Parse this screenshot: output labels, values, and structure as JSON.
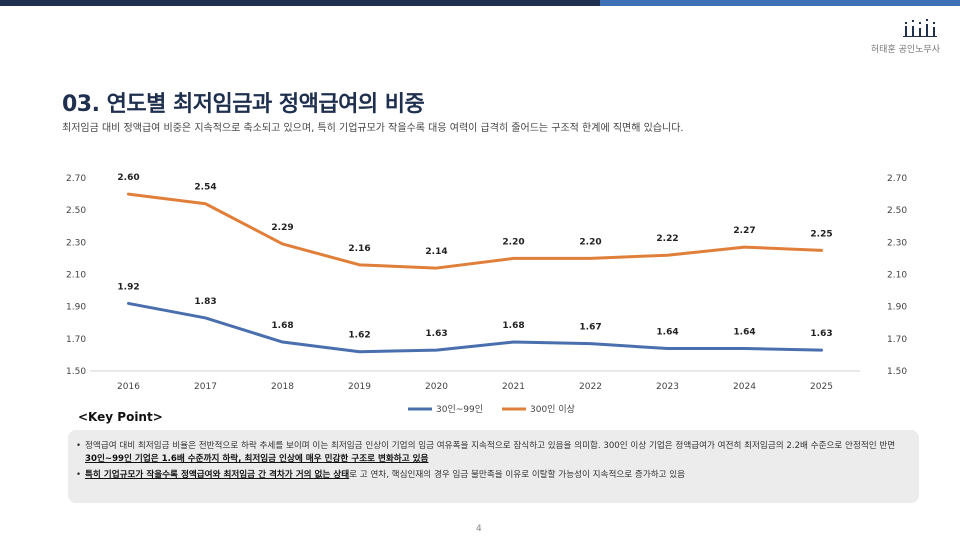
{
  "header": {
    "firm_name": "허태훈 공인노무사",
    "title": "03. 연도별 최저임금과 정액급여의 비중",
    "subtitle": "최저임금 대비 정액급여 비중은 지속적으로 축소되고 있으며, 특히 기업규모가 작을수록 대응 여력이 급격히 줄어드는 구조적 한계에 직면해 있습니다."
  },
  "colors": {
    "bar_dark": "#1f2f4e",
    "bar_light": "#3f6fb7",
    "series_30_99": "#4a6fae",
    "series_300_plus": "#e07f3a"
  },
  "chart_data": {
    "type": "line",
    "title": "",
    "xlabel": "",
    "ylabel": "",
    "x": [
      "2016",
      "2017",
      "2018",
      "2019",
      "2020",
      "2021",
      "2022",
      "2023",
      "2024",
      "2025"
    ],
    "y_ticks": [
      "2.70",
      "2.50",
      "2.30",
      "2.10",
      "1.90",
      "1.70",
      "1.50"
    ],
    "ylim": [
      1.5,
      2.7
    ],
    "grid": false,
    "legend_position": "bottom",
    "series": [
      {
        "name": "30인~99인",
        "values": [
          1.92,
          1.83,
          1.68,
          1.62,
          1.63,
          1.68,
          1.67,
          1.64,
          1.64,
          1.63
        ],
        "labels": [
          "1.92",
          "1.83",
          "1.68",
          "1.62",
          "1.63",
          "1.68",
          "1.67",
          "1.64",
          "1.64",
          "1.63"
        ]
      },
      {
        "name": "300인 이상",
        "values": [
          2.6,
          2.54,
          2.29,
          2.16,
          2.14,
          2.2,
          2.2,
          2.22,
          2.27,
          2.25
        ],
        "labels": [
          "2.60",
          "2.54",
          "2.29",
          "2.16",
          "2.14",
          "2.20",
          "2.20",
          "2.22",
          "2.27",
          "2.25"
        ]
      }
    ]
  },
  "key_point": {
    "title": "<Key Point>",
    "bullet": "•",
    "item1_text": "정액급여 대비 최저임금 비율은 전반적으로 하락 추세를 보이며 이는 최저임금 인상이 기업의 임금 여유폭을 지속적으로 잠식하고 있음을 의미함. 300인 이상 기업은 정액급여가 여전히 최저임금의 2.2배 수준으로 안정적인 반면 ",
    "item1_emph": "30인~99인 기업은 1.6배 수준까지 하락, 최저임금 인상에 매우 민감한 구조로 변화하고 있음",
    "item2_emph": "특히 기업규모가 작을수록 정액급여와 최저임금 간 격차가 거의 없는 상태",
    "item2_text": "로 고 연차, 핵심인재의 경우 임금 불만족을 이유로 이탈할 가능성이 지속적으로 증가하고 있음"
  },
  "footer": {
    "page_number": "4"
  }
}
